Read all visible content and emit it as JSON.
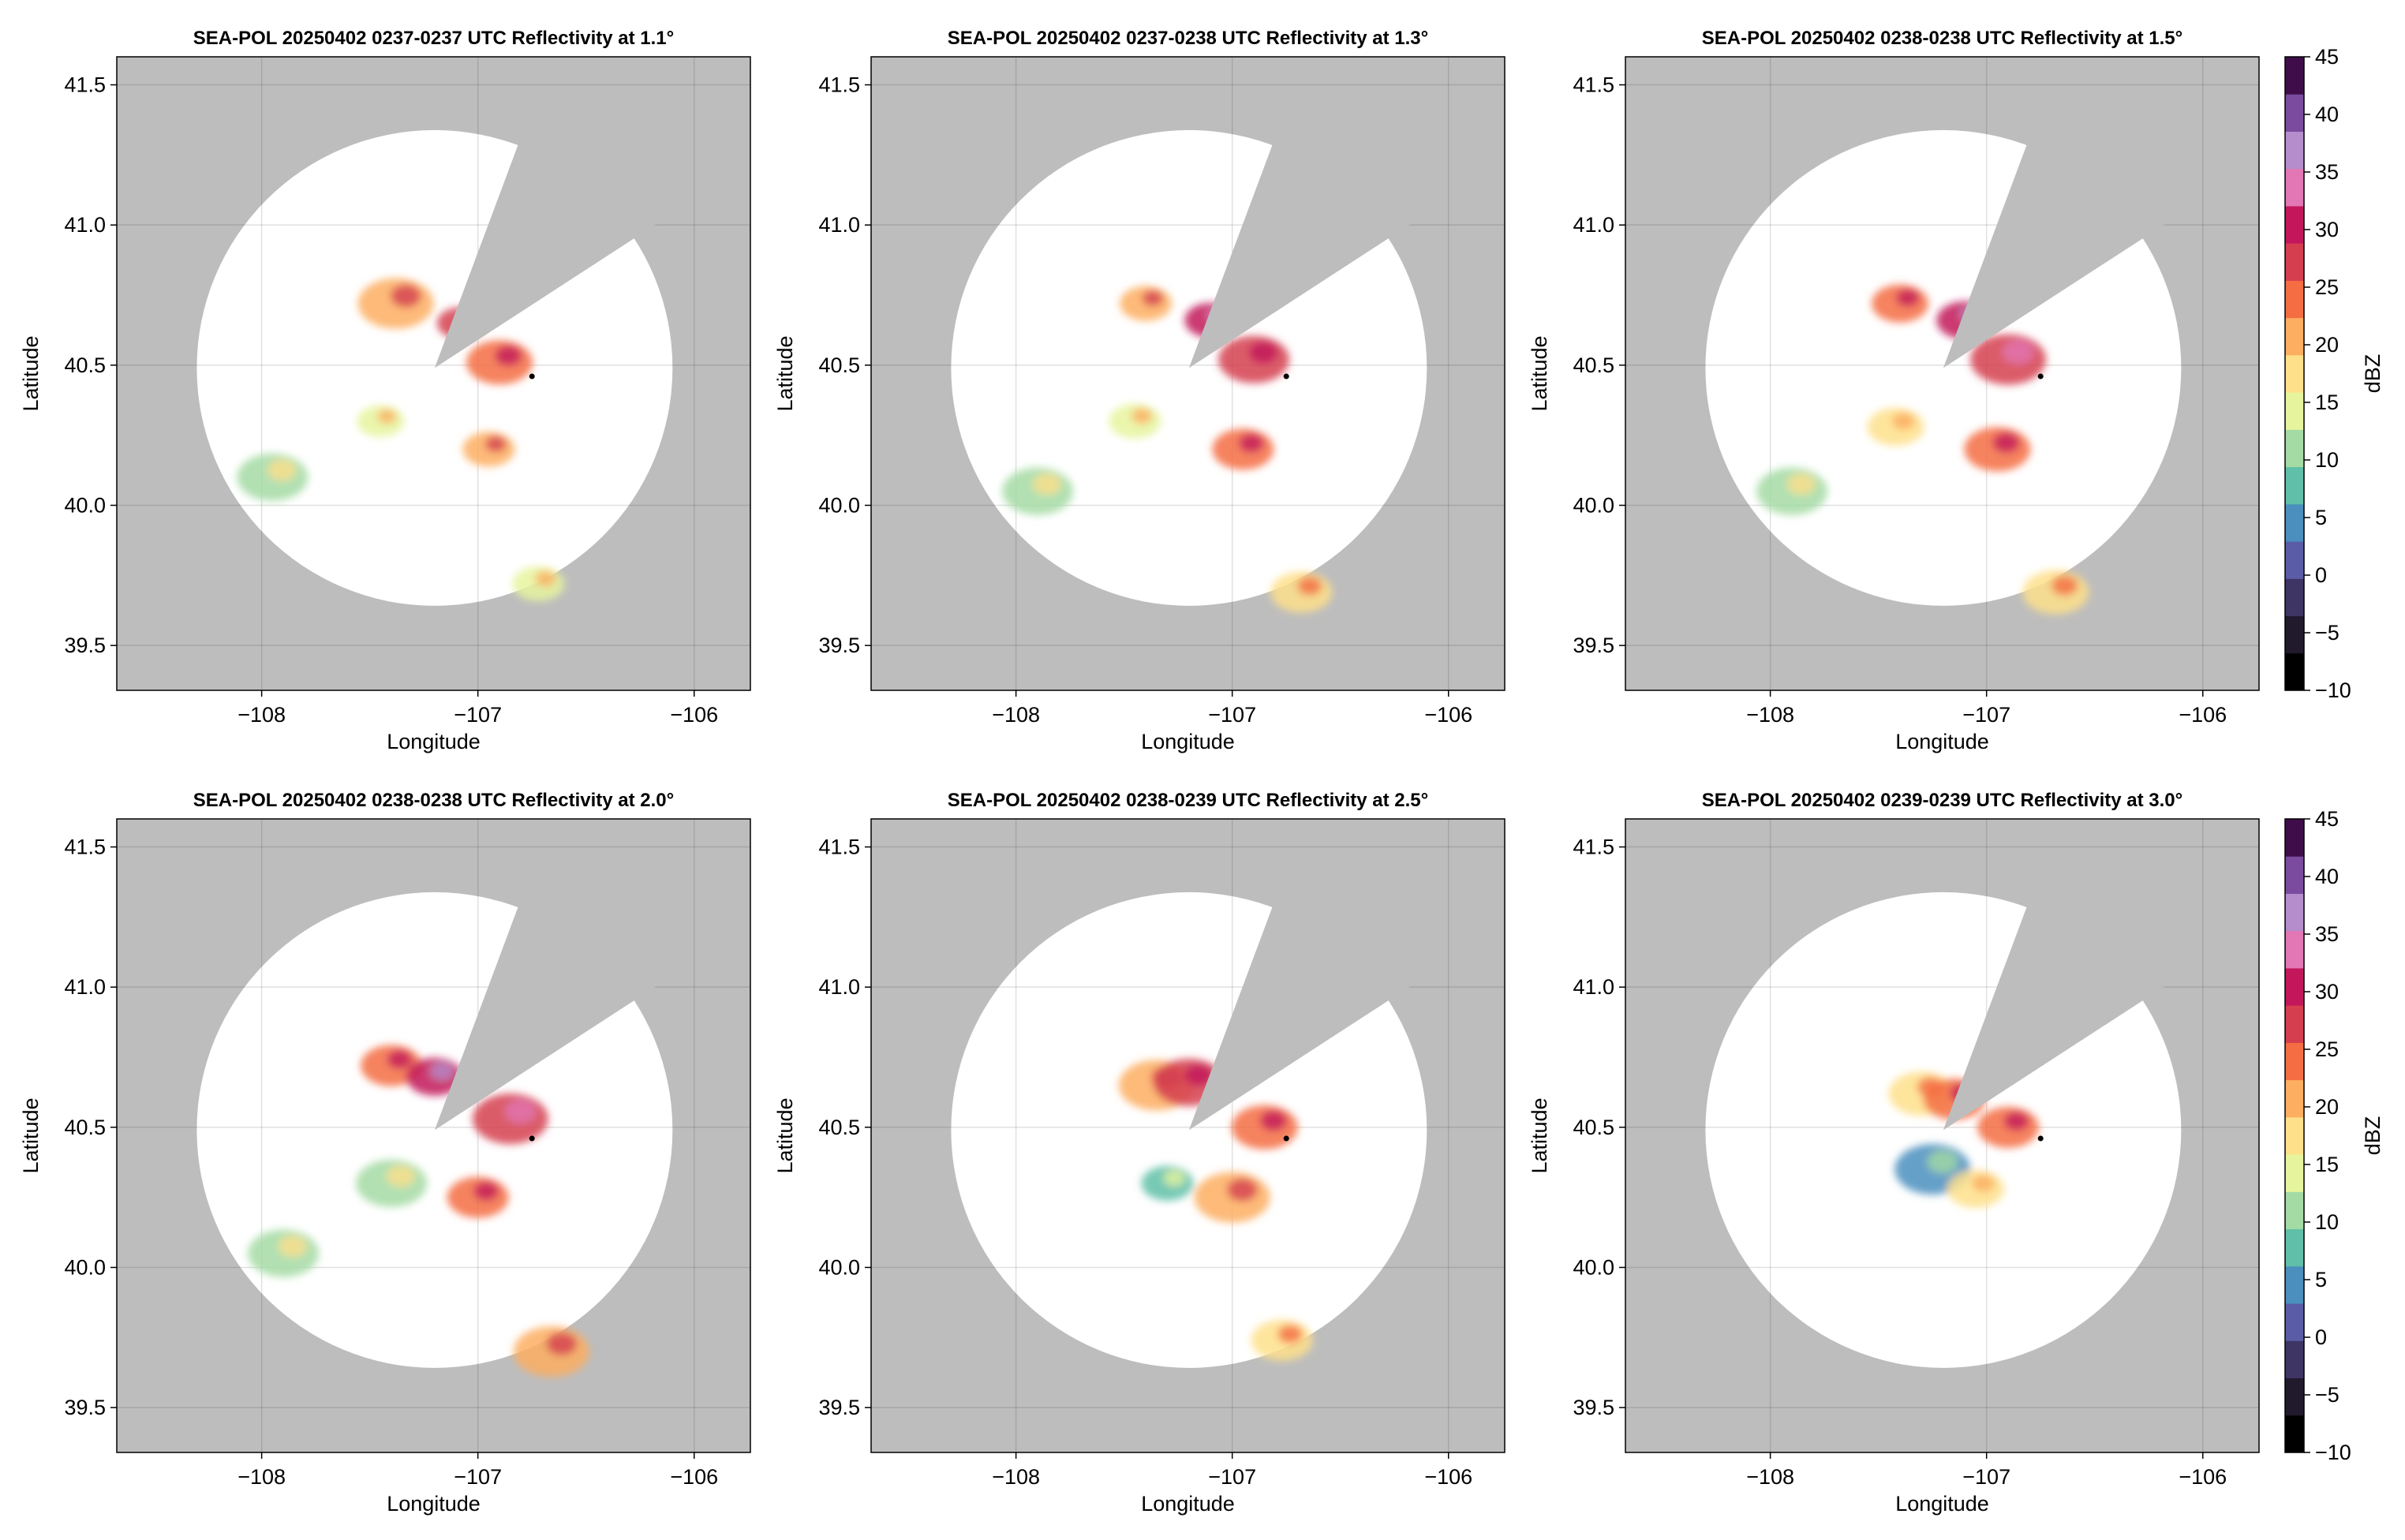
{
  "chart_data": [
    {
      "type": "heatmap",
      "title": "SEA-POL 20250402 0237-0237 UTC Reflectivity at 1.1°",
      "xlabel": "Longitude",
      "ylabel": "Latitude",
      "xlim": [
        -108.67,
        -105.74
      ],
      "ylim": [
        39.34,
        41.6
      ],
      "xticks": [
        -108,
        -107,
        -106
      ],
      "xtick_labels": [
        "−108",
        "−107",
        "−106"
      ],
      "yticks": [
        39.5,
        40.0,
        40.5,
        41.0,
        41.5
      ],
      "ytick_labels": [
        "39.5",
        "40.0",
        "40.5",
        "41.0",
        "41.5"
      ],
      "grid": true,
      "radar_center": [
        -107.2,
        40.49
      ],
      "range_radius_deg": 1.1,
      "blocked_sector_deg": [
        20.5,
        57
      ],
      "marker": [
        -106.75,
        40.46
      ],
      "echoes": [
        {
          "region": "northwest arm",
          "lon": -107.38,
          "lat": 40.72,
          "dbz": 20
        },
        {
          "region": "north core",
          "lon": -107.08,
          "lat": 40.65,
          "dbz": 28
        },
        {
          "region": "east band",
          "lon": -106.9,
          "lat": 40.51,
          "dbz": 25
        },
        {
          "region": "southwest",
          "lon": -107.45,
          "lat": 40.3,
          "dbz": 14
        },
        {
          "region": "southeast",
          "lon": -106.95,
          "lat": 40.2,
          "dbz": 22
        },
        {
          "region": "far southeast",
          "lon": -106.72,
          "lat": 39.72,
          "dbz": 15
        },
        {
          "region": "far west",
          "lon": -107.95,
          "lat": 40.1,
          "dbz": 12
        }
      ]
    },
    {
      "type": "heatmap",
      "title": "SEA-POL 20250402 0237-0238 UTC Reflectivity at 1.3°",
      "xlabel": "Longitude",
      "ylabel": "Latitude",
      "xlim": [
        -108.67,
        -105.74
      ],
      "ylim": [
        39.34,
        41.6
      ],
      "xticks": [
        -108,
        -107,
        -106
      ],
      "xtick_labels": [
        "−108",
        "−107",
        "−106"
      ],
      "yticks": [
        39.5,
        40.0,
        40.5,
        41.0,
        41.5
      ],
      "ytick_labels": [
        "39.5",
        "40.0",
        "40.5",
        "41.0",
        "41.5"
      ],
      "grid": true,
      "radar_center": [
        -107.2,
        40.49
      ],
      "range_radius_deg": 1.1,
      "blocked_sector_deg": [
        20.5,
        57
      ],
      "marker": [
        -106.75,
        40.46
      ],
      "echoes": [
        {
          "region": "northwest arm",
          "lon": -107.4,
          "lat": 40.72,
          "dbz": 22
        },
        {
          "region": "north core",
          "lon": -107.1,
          "lat": 40.66,
          "dbz": 29
        },
        {
          "region": "east band",
          "lon": -106.9,
          "lat": 40.52,
          "dbz": 26
        },
        {
          "region": "southwest",
          "lon": -107.45,
          "lat": 40.3,
          "dbz": 15
        },
        {
          "region": "southeast",
          "lon": -106.95,
          "lat": 40.2,
          "dbz": 24
        },
        {
          "region": "far southeast",
          "lon": -106.68,
          "lat": 39.69,
          "dbz": 17
        },
        {
          "region": "far west",
          "lon": -107.9,
          "lat": 40.05,
          "dbz": 12
        }
      ]
    },
    {
      "type": "heatmap",
      "title": "SEA-POL 20250402 0238-0238 UTC Reflectivity at 1.5°",
      "xlabel": "Longitude",
      "ylabel": "Latitude",
      "xlim": [
        -108.67,
        -105.74
      ],
      "ylim": [
        39.34,
        41.6
      ],
      "xticks": [
        -108,
        -107,
        -106
      ],
      "xtick_labels": [
        "−108",
        "−107",
        "−106"
      ],
      "yticks": [
        39.5,
        40.0,
        40.5,
        41.0,
        41.5
      ],
      "ytick_labels": [
        "39.5",
        "40.0",
        "40.5",
        "41.0",
        "41.5"
      ],
      "grid": true,
      "radar_center": [
        -107.2,
        40.49
      ],
      "range_radius_deg": 1.1,
      "blocked_sector_deg": [
        20.5,
        57
      ],
      "marker": [
        -106.75,
        40.46
      ],
      "echoes": [
        {
          "region": "northwest arm",
          "lon": -107.4,
          "lat": 40.72,
          "dbz": 23
        },
        {
          "region": "north core",
          "lon": -107.1,
          "lat": 40.66,
          "dbz": 30
        },
        {
          "region": "east band",
          "lon": -106.9,
          "lat": 40.52,
          "dbz": 27
        },
        {
          "region": "southwest",
          "lon": -107.42,
          "lat": 40.28,
          "dbz": 16
        },
        {
          "region": "southeast",
          "lon": -106.95,
          "lat": 40.2,
          "dbz": 25
        },
        {
          "region": "far southeast",
          "lon": -106.68,
          "lat": 39.69,
          "dbz": 18
        },
        {
          "region": "far west",
          "lon": -107.9,
          "lat": 40.05,
          "dbz": 12
        }
      ]
    },
    {
      "type": "heatmap",
      "title": "SEA-POL 20250402 0238-0238 UTC Reflectivity at 2.0°",
      "xlabel": "Longitude",
      "ylabel": "Latitude",
      "xlim": [
        -108.67,
        -105.74
      ],
      "ylim": [
        39.34,
        41.6
      ],
      "xticks": [
        -108,
        -107,
        -106
      ],
      "xtick_labels": [
        "−108",
        "−107",
        "−106"
      ],
      "yticks": [
        39.5,
        40.0,
        40.5,
        41.0,
        41.5
      ],
      "ytick_labels": [
        "39.5",
        "40.0",
        "40.5",
        "41.0",
        "41.5"
      ],
      "grid": true,
      "radar_center": [
        -107.2,
        40.49
      ],
      "range_radius_deg": 1.1,
      "blocked_sector_deg": [
        20.5,
        57
      ],
      "marker": [
        -106.75,
        40.46
      ],
      "echoes": [
        {
          "region": "northwest arm",
          "lon": -107.4,
          "lat": 40.72,
          "dbz": 24
        },
        {
          "region": "north core",
          "lon": -107.2,
          "lat": 40.68,
          "dbz": 30
        },
        {
          "region": "east band",
          "lon": -106.85,
          "lat": 40.53,
          "dbz": 27
        },
        {
          "region": "southwest",
          "lon": -107.4,
          "lat": 40.3,
          "dbz": 12
        },
        {
          "region": "southeast",
          "lon": -107.0,
          "lat": 40.25,
          "dbz": 24
        },
        {
          "region": "far southeast",
          "lon": -106.66,
          "lat": 39.7,
          "dbz": 20
        },
        {
          "region": "far west",
          "lon": -107.9,
          "lat": 40.05,
          "dbz": 12
        }
      ]
    },
    {
      "type": "heatmap",
      "title": "SEA-POL 20250402 0238-0239 UTC Reflectivity at 2.5°",
      "xlabel": "Longitude",
      "ylabel": "Latitude",
      "xlim": [
        -108.67,
        -105.74
      ],
      "ylim": [
        39.34,
        41.6
      ],
      "xticks": [
        -108,
        -107,
        -106
      ],
      "xtick_labels": [
        "−108",
        "−107",
        "−106"
      ],
      "yticks": [
        39.5,
        40.0,
        40.5,
        41.0,
        41.5
      ],
      "ytick_labels": [
        "39.5",
        "40.0",
        "40.5",
        "41.0",
        "41.5"
      ],
      "grid": true,
      "radar_center": [
        -107.2,
        40.49
      ],
      "range_radius_deg": 1.1,
      "blocked_sector_deg": [
        20.5,
        57
      ],
      "marker": [
        -106.75,
        40.46
      ],
      "echoes": [
        {
          "region": "northwest arm",
          "lon": -107.35,
          "lat": 40.65,
          "dbz": 20
        },
        {
          "region": "north core",
          "lon": -107.2,
          "lat": 40.66,
          "dbz": 26
        },
        {
          "region": "east band",
          "lon": -106.85,
          "lat": 40.5,
          "dbz": 25
        },
        {
          "region": "southwest",
          "lon": -107.3,
          "lat": 40.3,
          "dbz": 8
        },
        {
          "region": "southeast",
          "lon": -107.0,
          "lat": 40.25,
          "dbz": 20
        },
        {
          "region": "far southeast",
          "lon": -106.77,
          "lat": 39.74,
          "dbz": 17
        }
      ]
    },
    {
      "type": "heatmap",
      "title": "SEA-POL 20250402 0239-0239 UTC Reflectivity at 3.0°",
      "xlabel": "Longitude",
      "ylabel": "Latitude",
      "xlim": [
        -108.67,
        -105.74
      ],
      "ylim": [
        39.34,
        41.6
      ],
      "xticks": [
        -108,
        -107,
        -106
      ],
      "xtick_labels": [
        "−108",
        "−107",
        "−106"
      ],
      "yticks": [
        39.5,
        40.0,
        40.5,
        41.0,
        41.5
      ],
      "ytick_labels": [
        "39.5",
        "40.0",
        "40.5",
        "41.0",
        "41.5"
      ],
      "grid": true,
      "radar_center": [
        -107.2,
        40.49
      ],
      "range_radius_deg": 1.1,
      "blocked_sector_deg": [
        20.5,
        57
      ],
      "marker": [
        -106.75,
        40.46
      ],
      "echoes": [
        {
          "region": "northwest arm",
          "lon": -107.3,
          "lat": 40.62,
          "dbz": 18
        },
        {
          "region": "north core",
          "lon": -107.15,
          "lat": 40.6,
          "dbz": 24
        },
        {
          "region": "east band",
          "lon": -106.9,
          "lat": 40.5,
          "dbz": 24
        },
        {
          "region": "southwest",
          "lon": -107.25,
          "lat": 40.35,
          "dbz": 6
        },
        {
          "region": "southeast",
          "lon": -107.05,
          "lat": 40.28,
          "dbz": 16
        }
      ]
    }
  ],
  "colorbar": {
    "label": "dBZ",
    "range": [
      -10,
      45
    ],
    "ticks": [
      45,
      40,
      35,
      30,
      25,
      20,
      15,
      10,
      5,
      0,
      -5,
      -10
    ],
    "tick_labels": [
      "45",
      "40",
      "35",
      "30",
      "25",
      "20",
      "15",
      "10",
      "5",
      "0",
      "−5",
      "−10"
    ],
    "colors": [
      "#000000",
      "#201a2c",
      "#3f3565",
      "#5a5da6",
      "#4a8fbe",
      "#5fbfa8",
      "#a4dba4",
      "#e6f59d",
      "#fee08b",
      "#fdae61",
      "#f46d43",
      "#d53e4f",
      "#c2185b",
      "#e377b5",
      "#b58ccc",
      "#7a4b9e",
      "#3f0e4a"
    ],
    "no_data_color": "#bdbdbd"
  }
}
